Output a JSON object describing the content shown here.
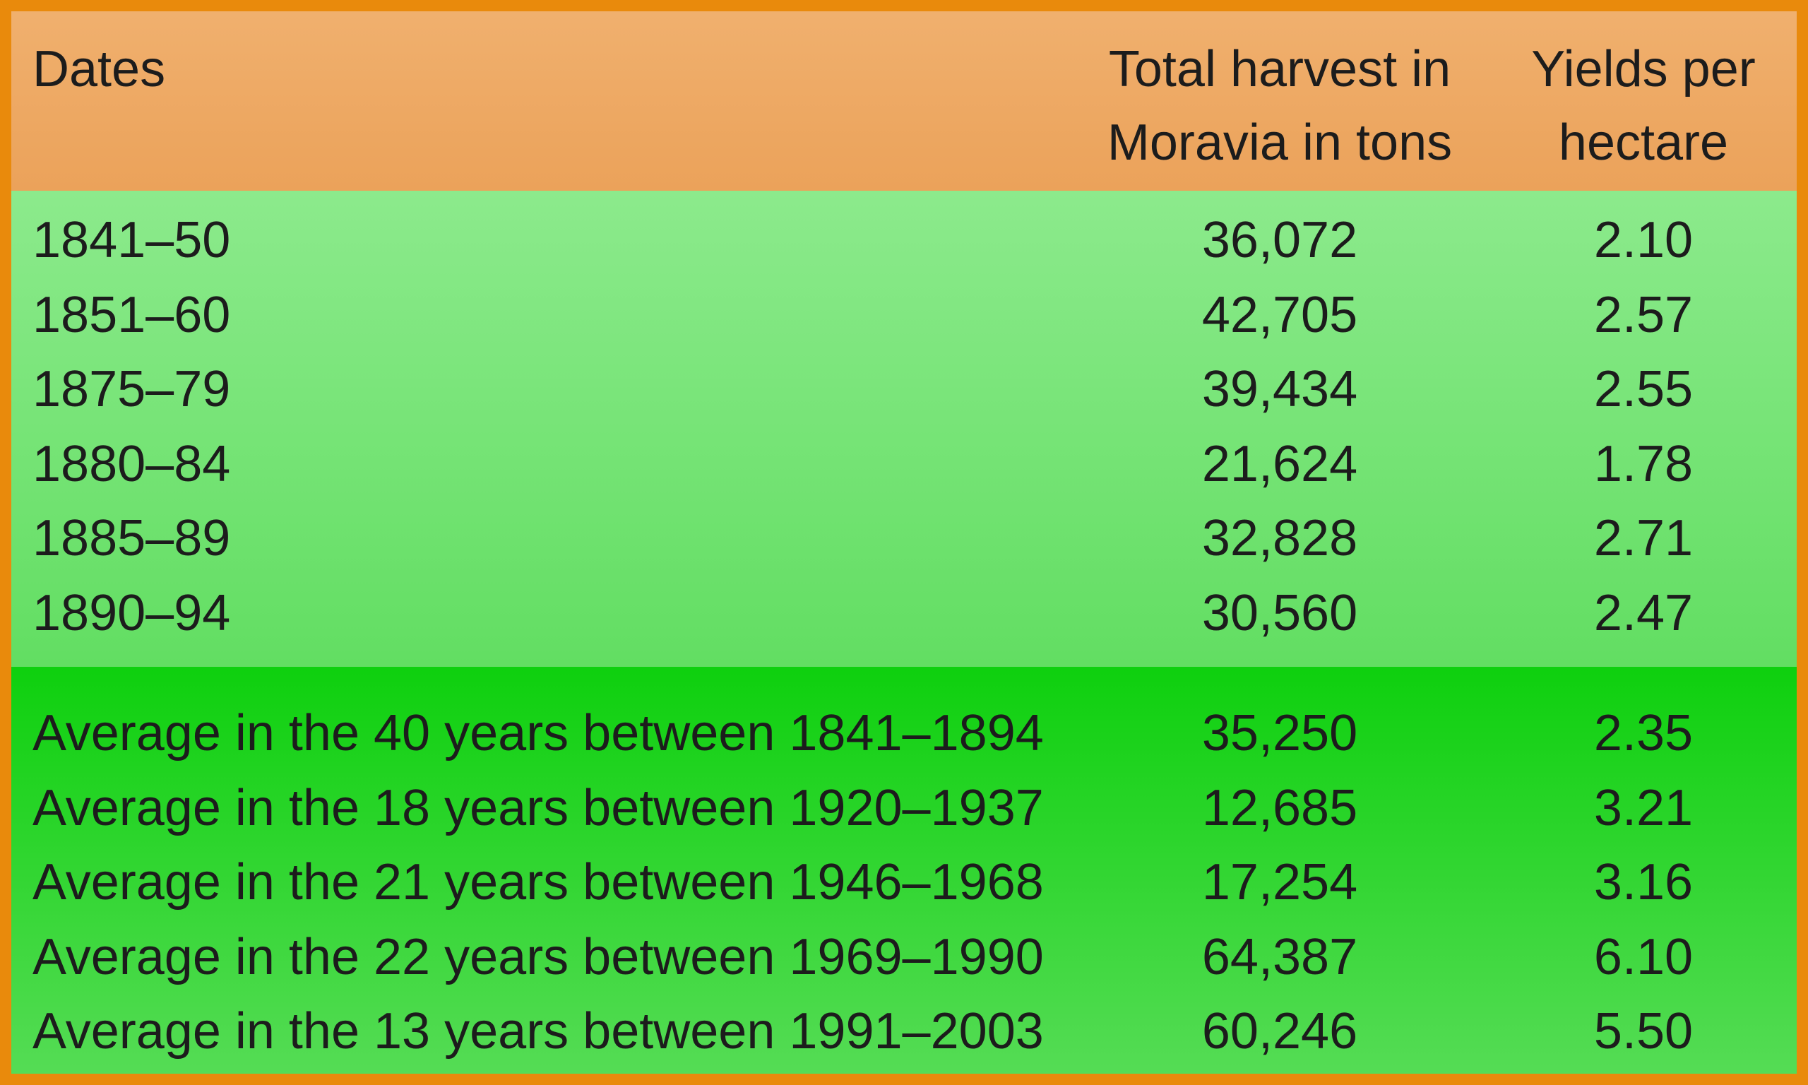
{
  "table": {
    "header": {
      "dates": "Dates",
      "harvest": [
        "Total harvest in",
        "Moravia in tons"
      ],
      "yields": [
        "Yields per",
        "hectare"
      ]
    },
    "rows": [
      [
        "1841–50",
        "36,072",
        "2.10"
      ],
      [
        "1851–60",
        "42,705",
        "2.57"
      ],
      [
        "1875–79",
        "39,434",
        "2.55"
      ],
      [
        "1880–84",
        "21,624",
        "1.78"
      ],
      [
        "1885–89",
        "32,828",
        "2.71"
      ],
      [
        "1890–94",
        "30,560",
        "2.47"
      ]
    ],
    "averages": [
      [
        "Average in the 40 years between 1841–1894",
        "35,250",
        "2.35"
      ],
      [
        "Average in the 18 years between 1920–1937",
        "12,685",
        "3.21"
      ],
      [
        "Average in the 21 years between 1946–1968",
        "17,254",
        "3.16"
      ],
      [
        "Average in the 22 years between 1969–1990",
        "64,387",
        "6.10"
      ],
      [
        "Average in the 13 years between 1991–2003",
        "60,246",
        "5.50"
      ]
    ]
  }
}
